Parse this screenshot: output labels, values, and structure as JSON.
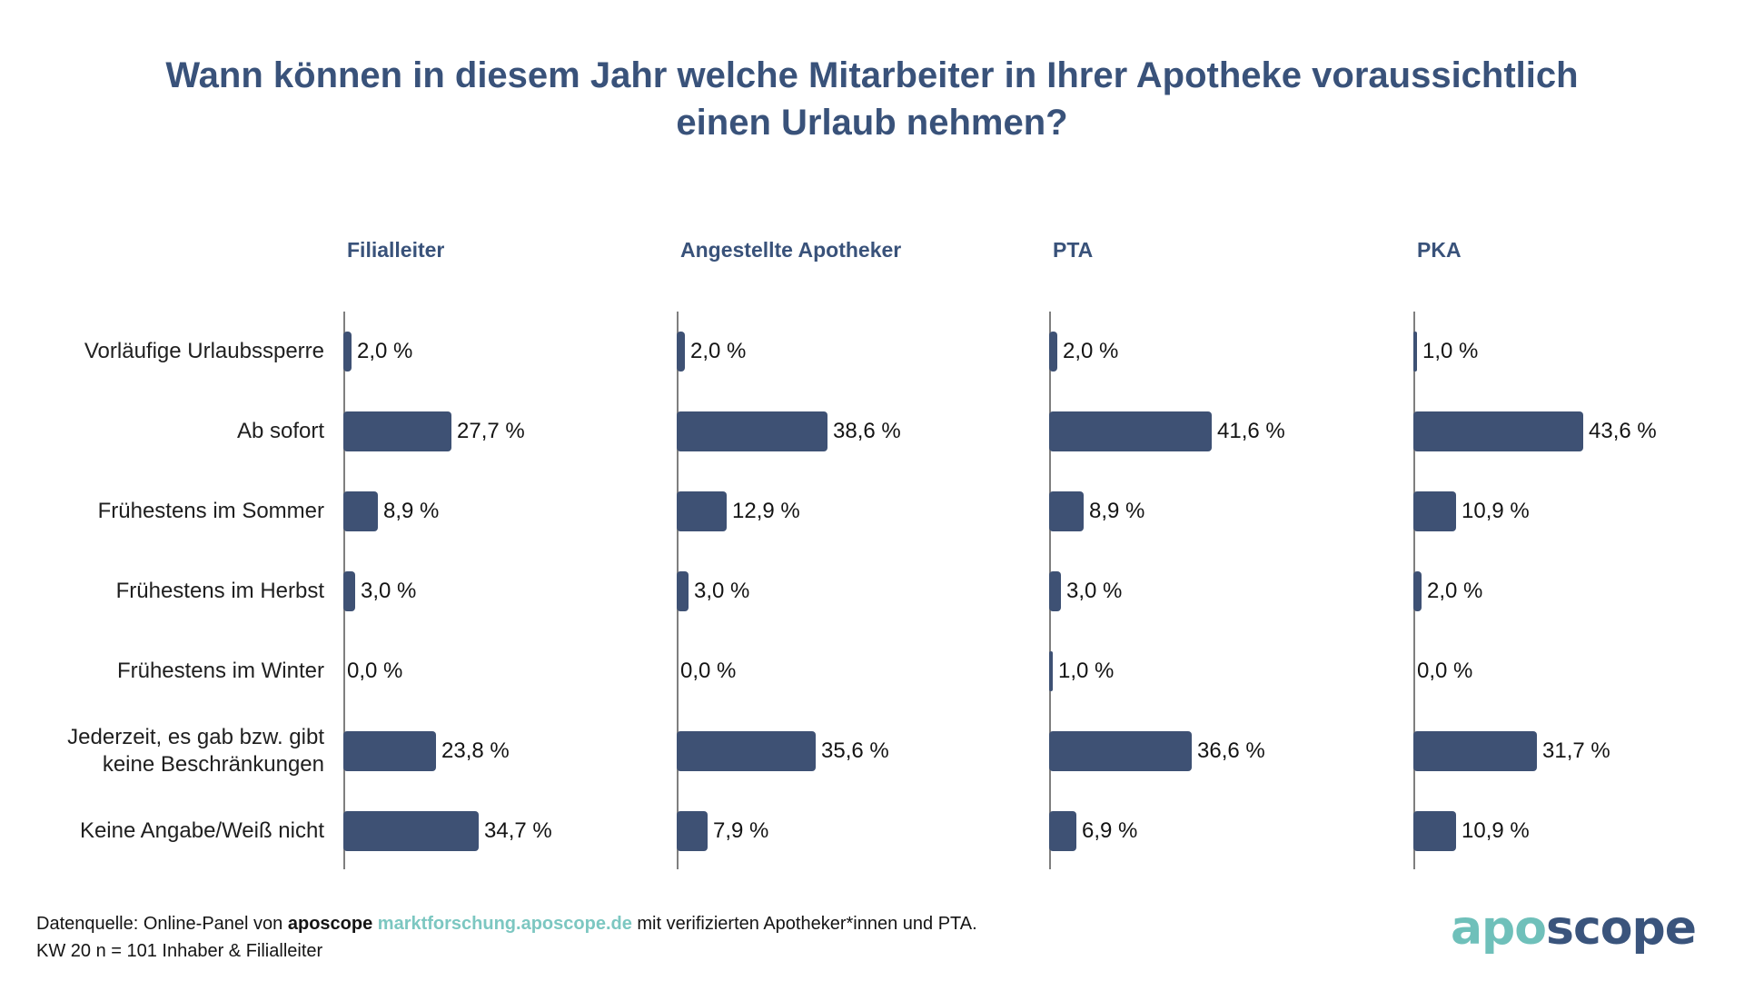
{
  "title": {
    "line1": "Wann können in diesem Jahr welche Mitarbeiter in Ihrer Apotheke voraussichtlich",
    "line2": "einen Urlaub nehmen?"
  },
  "chart_data": {
    "type": "bar",
    "orientation": "horizontal",
    "unit": "%",
    "grid": false,
    "xlim": [
      0,
      45
    ],
    "bar_color": "#3e5174",
    "axis_color": "#7f7f7f",
    "legend_position": "column-headers-top",
    "categories": [
      "Vorläufige Urlaubssperre",
      "Ab sofort",
      "Frühestens im Sommer",
      "Frühestens im Herbst",
      "Frühestens im Winter",
      "Jederzeit, es gab bzw. gibt keine Beschränkungen",
      "Keine Angabe/Weiß nicht"
    ],
    "series": [
      {
        "name": "Filialleiter",
        "values": [
          2.0,
          27.7,
          8.9,
          3.0,
          0.0,
          23.8,
          34.7
        ],
        "labels": [
          "2,0 %",
          "27,7 %",
          "8,9 %",
          "3,0 %",
          "0,0 %",
          "23,8 %",
          "34,7 %"
        ]
      },
      {
        "name": "Angestellte Apotheker",
        "values": [
          2.0,
          38.6,
          12.9,
          3.0,
          0.0,
          35.6,
          7.9
        ],
        "labels": [
          "2,0 %",
          "38,6 %",
          "12,9 %",
          "3,0 %",
          "0,0 %",
          "35,6 %",
          "7,9 %"
        ]
      },
      {
        "name": "PTA",
        "values": [
          2.0,
          41.6,
          8.9,
          3.0,
          1.0,
          36.6,
          6.9
        ],
        "labels": [
          "2,0 %",
          "41,6 %",
          "8,9 %",
          "3,0 %",
          "1,0 %",
          "36,6 %",
          "6,9 %"
        ]
      },
      {
        "name": "PKA",
        "values": [
          1.0,
          43.6,
          10.9,
          2.0,
          0.0,
          31.7,
          10.9
        ],
        "labels": [
          "1,0 %",
          "43,6 %",
          "10,9 %",
          "2,0 %",
          "0,0 %",
          "31,7 %",
          "10,9 %"
        ]
      }
    ]
  },
  "footer": {
    "prefix": "Datenquelle: Online-Panel von ",
    "brand": "aposcope",
    "space": " ",
    "link": "marktforschung.aposcope.de",
    "suffix": " mit verifizierten Apotheker*innen und PTA.",
    "line2": "KW 20 n = 101 Inhaber & Filialleiter"
  },
  "logo": {
    "part1": "apo",
    "part2": "scope",
    "teal": "#6fc0ba",
    "navy": "#3a547c"
  }
}
